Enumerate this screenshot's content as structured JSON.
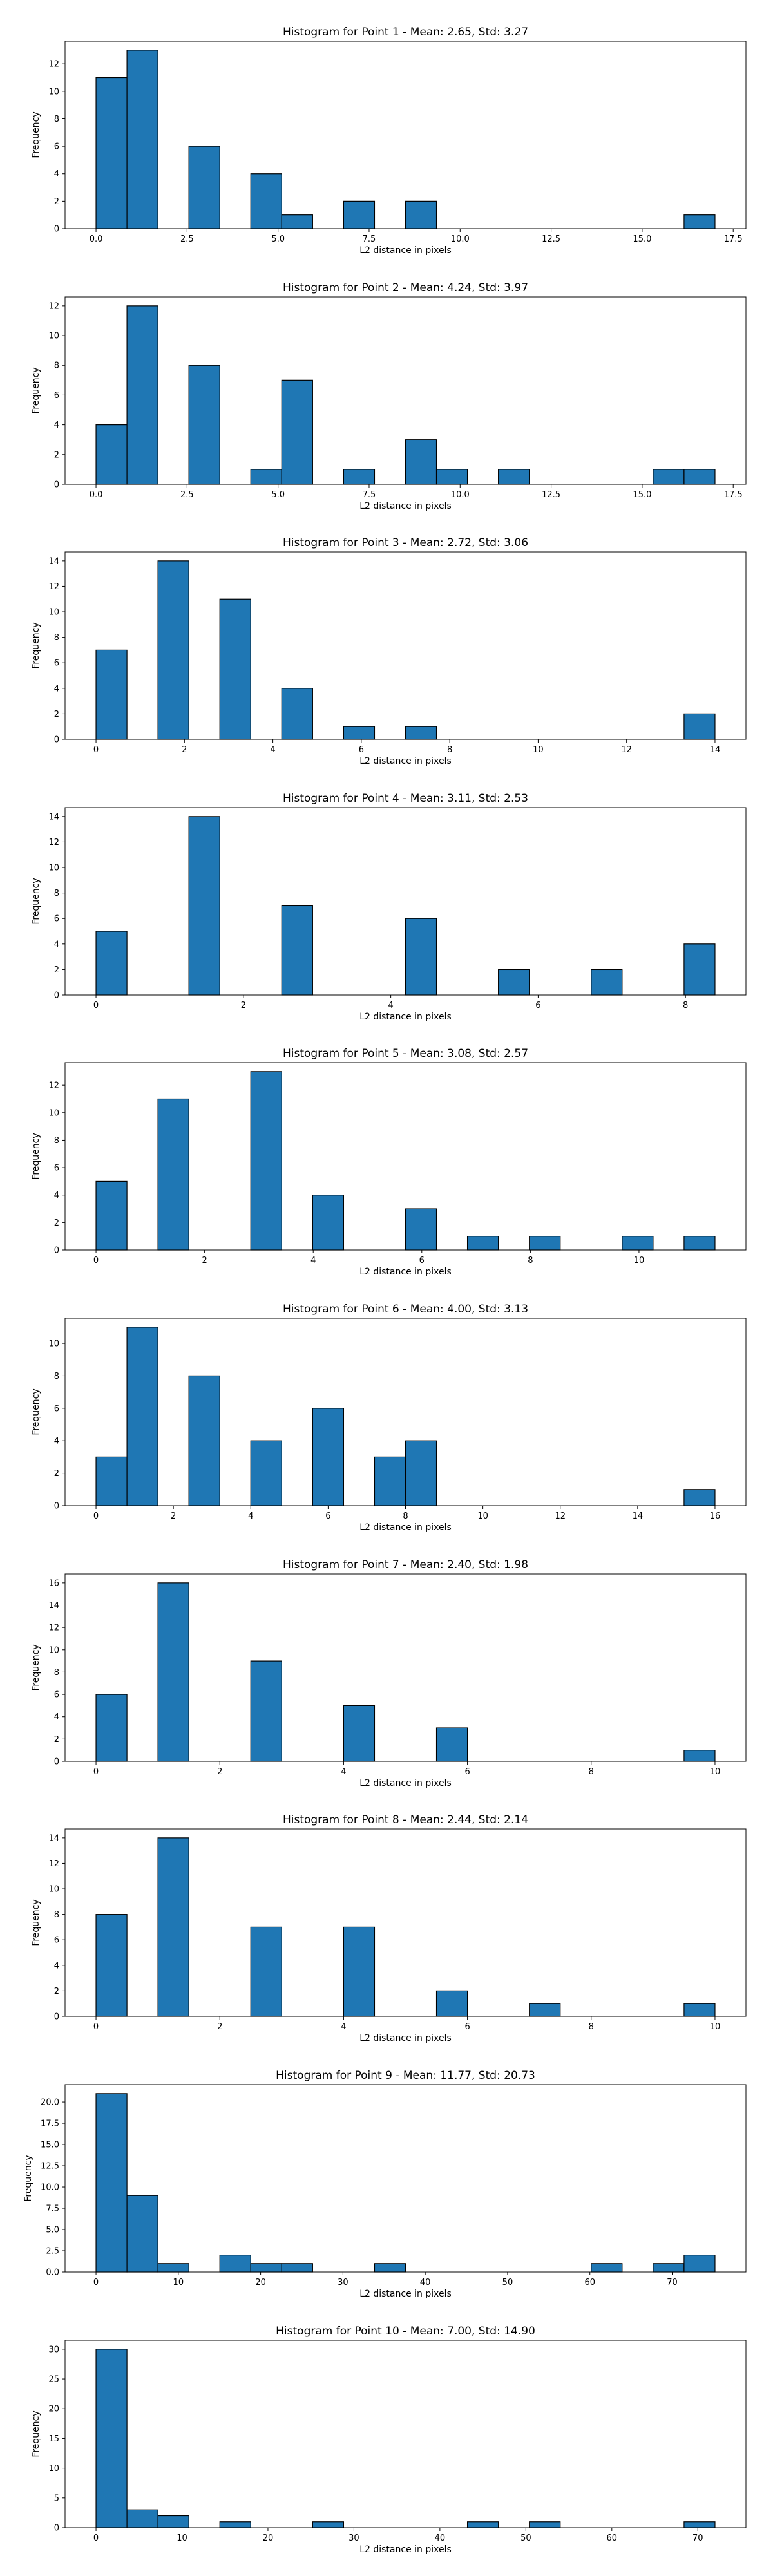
{
  "chart_data": [
    {
      "type": "bar",
      "title": "Histogram for Point 1 - Mean: 2.65, Std: 3.27",
      "xlabel": "L2 distance in pixels",
      "ylabel": "Frequency",
      "xlim": [
        -0.85,
        17.85
      ],
      "ylim": [
        0,
        13.65
      ],
      "xticks": [
        0.0,
        2.5,
        5.0,
        7.5,
        10.0,
        12.5,
        15.0,
        17.5
      ],
      "xtick_labels": [
        "0.0",
        "2.5",
        "5.0",
        "7.5",
        "10.0",
        "12.5",
        "15.0",
        "17.5"
      ],
      "yticks": [
        0,
        2,
        4,
        6,
        8,
        10,
        12
      ],
      "bar_color": "#1f77b4",
      "bins": [
        {
          "x0": 0.0,
          "x1": 0.85,
          "count": 11
        },
        {
          "x0": 0.85,
          "x1": 1.7,
          "count": 13
        },
        {
          "x0": 2.55,
          "x1": 3.4,
          "count": 6
        },
        {
          "x0": 4.25,
          "x1": 5.1,
          "count": 4
        },
        {
          "x0": 5.1,
          "x1": 5.95,
          "count": 1
        },
        {
          "x0": 6.8,
          "x1": 7.65,
          "count": 2
        },
        {
          "x0": 8.5,
          "x1": 9.35,
          "count": 2
        },
        {
          "x0": 16.15,
          "x1": 17.0,
          "count": 1
        }
      ]
    },
    {
      "type": "bar",
      "title": "Histogram for Point 2 - Mean: 4.24, Std: 3.97",
      "xlabel": "L2 distance in pixels",
      "ylabel": "Frequency",
      "xlim": [
        -0.85,
        17.85
      ],
      "ylim": [
        0,
        12.6
      ],
      "xticks": [
        0.0,
        2.5,
        5.0,
        7.5,
        10.0,
        12.5,
        15.0,
        17.5
      ],
      "xtick_labels": [
        "0.0",
        "2.5",
        "5.0",
        "7.5",
        "10.0",
        "12.5",
        "15.0",
        "17.5"
      ],
      "yticks": [
        0,
        2,
        4,
        6,
        8,
        10,
        12
      ],
      "bar_color": "#1f77b4",
      "bins": [
        {
          "x0": 0.0,
          "x1": 0.85,
          "count": 4
        },
        {
          "x0": 0.85,
          "x1": 1.7,
          "count": 12
        },
        {
          "x0": 2.55,
          "x1": 3.4,
          "count": 8
        },
        {
          "x0": 4.25,
          "x1": 5.1,
          "count": 1
        },
        {
          "x0": 5.1,
          "x1": 5.95,
          "count": 7
        },
        {
          "x0": 6.8,
          "x1": 7.65,
          "count": 1
        },
        {
          "x0": 8.5,
          "x1": 9.35,
          "count": 3
        },
        {
          "x0": 9.35,
          "x1": 10.2,
          "count": 1
        },
        {
          "x0": 11.05,
          "x1": 11.9,
          "count": 1
        },
        {
          "x0": 15.3,
          "x1": 16.15,
          "count": 1
        },
        {
          "x0": 16.15,
          "x1": 17.0,
          "count": 1
        }
      ]
    },
    {
      "type": "bar",
      "title": "Histogram for Point 3 - Mean: 2.72, Std: 3.06",
      "xlabel": "L2 distance in pixels",
      "ylabel": "Frequency",
      "xlim": [
        -0.7,
        14.7
      ],
      "ylim": [
        0,
        14.7
      ],
      "xticks": [
        0,
        2,
        4,
        6,
        8,
        10,
        12,
        14
      ],
      "xtick_labels": [
        "0",
        "2",
        "4",
        "6",
        "8",
        "10",
        "12",
        "14"
      ],
      "yticks": [
        0,
        2,
        4,
        6,
        8,
        10,
        12,
        14
      ],
      "bar_color": "#1f77b4",
      "bins": [
        {
          "x0": 0.0,
          "x1": 0.7,
          "count": 7
        },
        {
          "x0": 1.4,
          "x1": 2.1,
          "count": 14
        },
        {
          "x0": 2.8,
          "x1": 3.5,
          "count": 11
        },
        {
          "x0": 4.2,
          "x1": 4.9,
          "count": 4
        },
        {
          "x0": 5.6,
          "x1": 6.3,
          "count": 1
        },
        {
          "x0": 7.0,
          "x1": 7.7,
          "count": 1
        },
        {
          "x0": 13.3,
          "x1": 14.0,
          "count": 2
        }
      ]
    },
    {
      "type": "bar",
      "title": "Histogram for Point 4 - Mean: 3.11, Std: 2.53",
      "xlabel": "L2 distance in pixels",
      "ylabel": "Frequency",
      "xlim": [
        -0.42,
        8.82
      ],
      "ylim": [
        0,
        14.7
      ],
      "xticks": [
        0,
        2,
        4,
        6,
        8
      ],
      "xtick_labels": [
        "0",
        "2",
        "4",
        "6",
        "8"
      ],
      "yticks": [
        0,
        2,
        4,
        6,
        8,
        10,
        12,
        14
      ],
      "bar_color": "#1f77b4",
      "bins": [
        {
          "x0": 0.0,
          "x1": 0.42,
          "count": 5
        },
        {
          "x0": 1.26,
          "x1": 1.68,
          "count": 14
        },
        {
          "x0": 2.52,
          "x1": 2.94,
          "count": 7
        },
        {
          "x0": 4.2,
          "x1": 4.62,
          "count": 6
        },
        {
          "x0": 5.46,
          "x1": 5.88,
          "count": 2
        },
        {
          "x0": 6.72,
          "x1": 7.14,
          "count": 2
        },
        {
          "x0": 7.98,
          "x1": 8.4,
          "count": 4
        }
      ]
    },
    {
      "type": "bar",
      "title": "Histogram for Point 5 - Mean: 3.08, Std: 2.57",
      "xlabel": "L2 distance in pixels",
      "ylabel": "Frequency",
      "xlim": [
        -0.57,
        11.97
      ],
      "ylim": [
        0,
        13.65
      ],
      "xticks": [
        0,
        2,
        4,
        6,
        8,
        10
      ],
      "xtick_labels": [
        "0",
        "2",
        "4",
        "6",
        "8",
        "10"
      ],
      "yticks": [
        0,
        2,
        4,
        6,
        8,
        10,
        12
      ],
      "bar_color": "#1f77b4",
      "bins": [
        {
          "x0": 0.0,
          "x1": 0.57,
          "count": 5
        },
        {
          "x0": 1.14,
          "x1": 1.71,
          "count": 11
        },
        {
          "x0": 2.85,
          "x1": 3.42,
          "count": 13
        },
        {
          "x0": 3.99,
          "x1": 4.56,
          "count": 4
        },
        {
          "x0": 5.7,
          "x1": 6.27,
          "count": 3
        },
        {
          "x0": 6.84,
          "x1": 7.41,
          "count": 1
        },
        {
          "x0": 7.98,
          "x1": 8.55,
          "count": 1
        },
        {
          "x0": 9.69,
          "x1": 10.26,
          "count": 1
        },
        {
          "x0": 10.83,
          "x1": 11.4,
          "count": 1
        }
      ]
    },
    {
      "type": "bar",
      "title": "Histogram for Point 6 - Mean: 4.00, Std: 3.13",
      "xlabel": "L2 distance in pixels",
      "ylabel": "Frequency",
      "xlim": [
        -0.8,
        16.8
      ],
      "ylim": [
        0,
        11.55
      ],
      "xticks": [
        0,
        2,
        4,
        6,
        8,
        10,
        12,
        14,
        16
      ],
      "xtick_labels": [
        "0",
        "2",
        "4",
        "6",
        "8",
        "10",
        "12",
        "14",
        "16"
      ],
      "yticks": [
        0,
        2,
        4,
        6,
        8,
        10
      ],
      "bar_color": "#1f77b4",
      "bins": [
        {
          "x0": 0.0,
          "x1": 0.8,
          "count": 3
        },
        {
          "x0": 0.8,
          "x1": 1.6,
          "count": 11
        },
        {
          "x0": 2.4,
          "x1": 3.2,
          "count": 8
        },
        {
          "x0": 4.0,
          "x1": 4.8,
          "count": 4
        },
        {
          "x0": 5.6,
          "x1": 6.4,
          "count": 6
        },
        {
          "x0": 7.2,
          "x1": 8.0,
          "count": 3
        },
        {
          "x0": 8.0,
          "x1": 8.8,
          "count": 4
        },
        {
          "x0": 15.2,
          "x1": 16.0,
          "count": 1
        }
      ]
    },
    {
      "type": "bar",
      "title": "Histogram for Point 7 - Mean: 2.40, Std: 1.98",
      "xlabel": "L2 distance in pixels",
      "ylabel": "Frequency",
      "xlim": [
        -0.5,
        10.5
      ],
      "ylim": [
        0,
        16.8
      ],
      "xticks": [
        0,
        2,
        4,
        6,
        8,
        10
      ],
      "xtick_labels": [
        "0",
        "2",
        "4",
        "6",
        "8",
        "10"
      ],
      "yticks": [
        0,
        2,
        4,
        6,
        8,
        10,
        12,
        14,
        16
      ],
      "bar_color": "#1f77b4",
      "bins": [
        {
          "x0": 0.0,
          "x1": 0.5,
          "count": 6
        },
        {
          "x0": 1.0,
          "x1": 1.5,
          "count": 16
        },
        {
          "x0": 2.5,
          "x1": 3.0,
          "count": 9
        },
        {
          "x0": 4.0,
          "x1": 4.5,
          "count": 5
        },
        {
          "x0": 5.5,
          "x1": 6.0,
          "count": 3
        },
        {
          "x0": 9.5,
          "x1": 10.0,
          "count": 1
        }
      ]
    },
    {
      "type": "bar",
      "title": "Histogram for Point 8 - Mean: 2.44, Std: 2.14",
      "xlabel": "L2 distance in pixels",
      "ylabel": "Frequency",
      "xlim": [
        -0.5,
        10.5
      ],
      "ylim": [
        0,
        14.7
      ],
      "xticks": [
        0,
        2,
        4,
        6,
        8,
        10
      ],
      "xtick_labels": [
        "0",
        "2",
        "4",
        "6",
        "8",
        "10"
      ],
      "yticks": [
        0,
        2,
        4,
        6,
        8,
        10,
        12,
        14
      ],
      "bar_color": "#1f77b4",
      "bins": [
        {
          "x0": 0.0,
          "x1": 0.5,
          "count": 8
        },
        {
          "x0": 1.0,
          "x1": 1.5,
          "count": 14
        },
        {
          "x0": 2.5,
          "x1": 3.0,
          "count": 7
        },
        {
          "x0": 4.0,
          "x1": 4.5,
          "count": 7
        },
        {
          "x0": 5.5,
          "x1": 6.0,
          "count": 2
        },
        {
          "x0": 7.0,
          "x1": 7.5,
          "count": 1
        },
        {
          "x0": 9.5,
          "x1": 10.0,
          "count": 1
        }
      ]
    },
    {
      "type": "bar",
      "title": "Histogram for Point 9 - Mean: 11.77, Std: 20.73",
      "xlabel": "L2 distance in pixels",
      "ylabel": "Frequency",
      "xlim": [
        -3.76,
        78.96
      ],
      "ylim": [
        0,
        22.05
      ],
      "xticks": [
        0,
        10,
        20,
        30,
        40,
        50,
        60,
        70
      ],
      "xtick_labels": [
        "0",
        "10",
        "20",
        "30",
        "40",
        "50",
        "60",
        "70"
      ],
      "yticks": [
        0.0,
        2.5,
        5.0,
        7.5,
        10.0,
        12.5,
        15.0,
        17.5,
        20.0
      ],
      "ytick_labels": [
        "0.0",
        "2.5",
        "5.0",
        "7.5",
        "10.0",
        "12.5",
        "15.0",
        "17.5",
        "20.0"
      ],
      "bar_color": "#1f77b4",
      "bins": [
        {
          "x0": 0.0,
          "x1": 3.76,
          "count": 21
        },
        {
          "x0": 3.76,
          "x1": 7.52,
          "count": 9
        },
        {
          "x0": 7.52,
          "x1": 11.28,
          "count": 1
        },
        {
          "x0": 15.04,
          "x1": 18.8,
          "count": 2
        },
        {
          "x0": 18.8,
          "x1": 22.56,
          "count": 1
        },
        {
          "x0": 22.56,
          "x1": 26.32,
          "count": 1
        },
        {
          "x0": 33.84,
          "x1": 37.6,
          "count": 1
        },
        {
          "x0": 60.16,
          "x1": 63.92,
          "count": 1
        },
        {
          "x0": 67.68,
          "x1": 71.44,
          "count": 1
        },
        {
          "x0": 71.44,
          "x1": 75.2,
          "count": 2
        }
      ]
    },
    {
      "type": "bar",
      "title": "Histogram for Point 10 - Mean: 7.00, Std: 14.90",
      "xlabel": "L2 distance in pixels",
      "ylabel": "Frequency",
      "xlim": [
        -3.6,
        75.6
      ],
      "ylim": [
        0,
        31.5
      ],
      "xticks": [
        0,
        10,
        20,
        30,
        40,
        50,
        60,
        70
      ],
      "xtick_labels": [
        "0",
        "10",
        "20",
        "30",
        "40",
        "50",
        "60",
        "70"
      ],
      "yticks": [
        0,
        5,
        10,
        15,
        20,
        25,
        30
      ],
      "bar_color": "#1f77b4",
      "bins": [
        {
          "x0": 0.0,
          "x1": 3.6,
          "count": 30
        },
        {
          "x0": 3.6,
          "x1": 7.2,
          "count": 3
        },
        {
          "x0": 7.2,
          "x1": 10.8,
          "count": 2
        },
        {
          "x0": 14.4,
          "x1": 18.0,
          "count": 1
        },
        {
          "x0": 25.2,
          "x1": 28.8,
          "count": 1
        },
        {
          "x0": 43.2,
          "x1": 46.8,
          "count": 1
        },
        {
          "x0": 50.4,
          "x1": 54.0,
          "count": 1
        },
        {
          "x0": 68.4,
          "x1": 72.0,
          "count": 1
        }
      ]
    }
  ]
}
